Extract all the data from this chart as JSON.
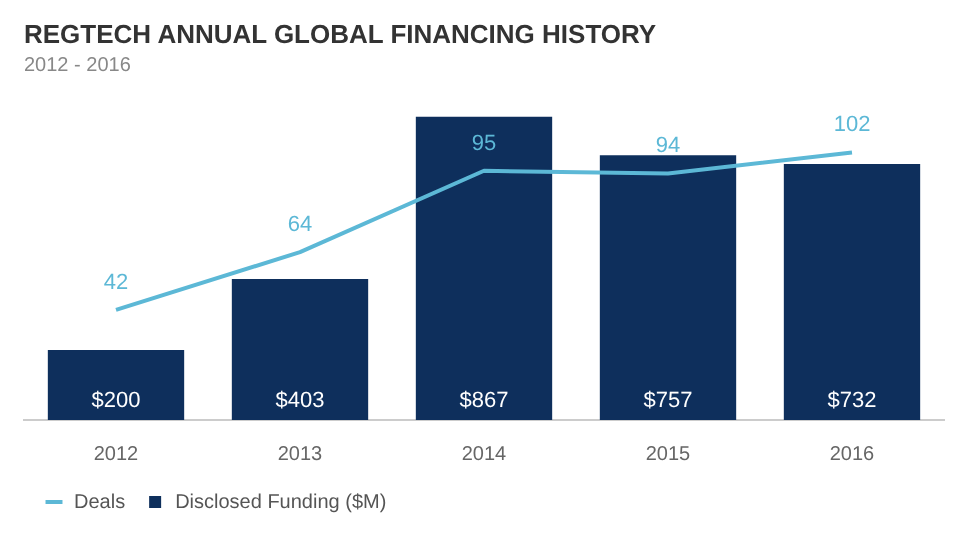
{
  "chart_data": {
    "type": "bar",
    "title": "REGTECH ANNUAL GLOBAL FINANCING HISTORY",
    "subtitle": "2012 - 2016",
    "categories": [
      "2012",
      "2013",
      "2014",
      "2015",
      "2016"
    ],
    "series": [
      {
        "name": "Disclosed Funding ($M)",
        "color": "#0e2f5c",
        "values": [
          200,
          403,
          867,
          757,
          732
        ],
        "value_labels": [
          "$200",
          "$403",
          "$867",
          "$757",
          "$732"
        ]
      },
      {
        "name": "Deals",
        "type": "line",
        "axis": "y2",
        "color": "#5cb8d6",
        "values": [
          42,
          64,
          95,
          94,
          102
        ],
        "value_labels": [
          "42",
          "64",
          "95",
          "94",
          "102"
        ]
      }
    ],
    "legend": "bottom left",
    "grid": false,
    "marker": "none",
    "line_style": "solid"
  }
}
